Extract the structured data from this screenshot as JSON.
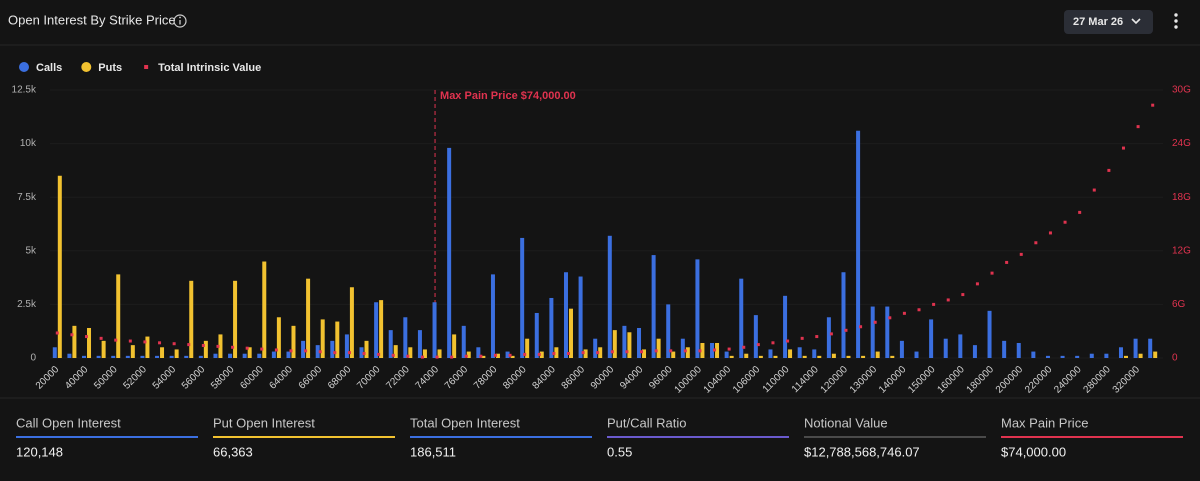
{
  "chart_data": {
    "type": "bar",
    "title": "Open Interest By Strike Price",
    "categories": [
      20000,
      null,
      40000,
      null,
      50000,
      null,
      52000,
      null,
      54000,
      null,
      56000,
      null,
      58000,
      null,
      60000,
      null,
      64000,
      null,
      66000,
      null,
      68000,
      null,
      70000,
      null,
      72000,
      null,
      74000,
      null,
      76000,
      null,
      78000,
      null,
      80000,
      null,
      84000,
      null,
      86000,
      null,
      90000,
      null,
      94000,
      null,
      96000,
      null,
      100000,
      null,
      104000,
      null,
      106000,
      null,
      110000,
      null,
      114000,
      null,
      120000,
      null,
      130000,
      null,
      140000,
      null,
      150000,
      null,
      160000,
      null,
      180000,
      null,
      200000,
      null,
      220000,
      null,
      240000,
      null,
      280000,
      null,
      320000,
      null
    ],
    "series": [
      {
        "name": "Calls",
        "color": "#3b6fe0",
        "values": [
          500,
          200,
          100,
          100,
          100,
          100,
          100,
          100,
          100,
          100,
          100,
          200,
          200,
          200,
          200,
          300,
          300,
          800,
          600,
          800,
          1100,
          500,
          2600,
          1300,
          1900,
          1300,
          2600,
          9800,
          1500,
          500,
          3900,
          300,
          5600,
          2100,
          2800,
          4000,
          3800,
          900,
          5700,
          1500,
          1400,
          4800,
          2500,
          900,
          4600,
          700,
          300,
          3700,
          2000,
          400,
          2900,
          500,
          400,
          1900,
          4000,
          10600,
          2400,
          2400,
          800,
          300,
          1800,
          900,
          1100,
          600,
          2200,
          800,
          700,
          300,
          100,
          100,
          100,
          200,
          200,
          500,
          900,
          900
        ]
      },
      {
        "name": "Puts",
        "color": "#f2c230",
        "values": [
          8500,
          1500,
          1400,
          800,
          3900,
          600,
          1000,
          500,
          400,
          3600,
          800,
          1100,
          3600,
          500,
          4500,
          1900,
          1500,
          3700,
          1800,
          1700,
          3300,
          800,
          2700,
          600,
          500,
          400,
          400,
          1100,
          300,
          100,
          200,
          100,
          900,
          300,
          500,
          2300,
          400,
          500,
          1300,
          1200,
          400,
          900,
          300,
          500,
          700,
          700,
          100,
          200,
          100,
          100,
          400,
          100,
          100,
          200,
          100,
          100,
          300,
          100,
          0,
          0,
          0,
          0,
          0,
          0,
          0,
          0,
          0,
          0,
          0,
          0,
          0,
          0,
          0,
          100,
          200,
          300
        ]
      },
      {
        "name": "Total Intrinsic Value",
        "color": "#e0334f",
        "axis": "y2",
        "values": [
          2.8,
          2.6,
          2.4,
          2.2,
          2.0,
          1.9,
          1.8,
          1.7,
          1.6,
          1.5,
          1.4,
          1.3,
          1.2,
          1.1,
          1.0,
          0.9,
          0.8,
          0.8,
          0.7,
          0.6,
          0.6,
          0.5,
          0.4,
          0.3,
          0.2,
          0.1,
          0.1,
          0.1,
          0.2,
          0.2,
          0.3,
          0.3,
          0.4,
          0.4,
          0.5,
          0.5,
          0.6,
          0.6,
          0.7,
          0.7,
          0.7,
          0.8,
          0.8,
          0.8,
          0.8,
          0.9,
          1.0,
          1.2,
          1.5,
          1.7,
          1.9,
          2.2,
          2.4,
          2.7,
          3.1,
          3.5,
          4.0,
          4.5,
          5.0,
          5.4,
          6.0,
          6.5,
          7.1,
          8.3,
          9.5,
          10.7,
          11.6,
          12.9,
          14.0,
          15.2,
          16.3,
          18.8,
          21.0,
          23.5,
          25.9,
          28.3
        ]
      }
    ],
    "ylim": [
      0,
      12500
    ],
    "yticks": [
      0,
      {
        "value": 2500,
        "label": "2.5k"
      },
      {
        "value": 5000,
        "label": "5k"
      },
      {
        "value": 7500,
        "label": "7.5k"
      },
      {
        "value": 10000,
        "label": "10k"
      },
      {
        "value": 12500,
        "label": "12.5k"
      }
    ],
    "y2lim": [
      0,
      30
    ],
    "y2ticks": [
      0,
      {
        "value": 6,
        "label": "6G"
      },
      {
        "value": 12,
        "label": "12G"
      },
      {
        "value": 18,
        "label": "18G"
      },
      {
        "value": 24,
        "label": "24G"
      },
      {
        "value": 30,
        "label": "30G"
      }
    ],
    "grid": true,
    "legend": "top-left",
    "annotation": {
      "text": "Max Pain Price $74,000.00",
      "x": 74000
    }
  },
  "header": {
    "expiry": "27 Mar 26"
  },
  "stats": [
    {
      "label": "Call Open Interest",
      "value": "120,148",
      "color": "#3b6fe0"
    },
    {
      "label": "Put Open Interest",
      "value": "66,363",
      "color": "#f2c230"
    },
    {
      "label": "Total Open Interest",
      "value": "186,511",
      "color": "#3b6fe0"
    },
    {
      "label": "Put/Call Ratio",
      "value": "0.55",
      "color": "#6a5acd"
    },
    {
      "label": "Notional Value",
      "value": "$12,788,568,746.07",
      "color": "#4a4a4a"
    },
    {
      "label": "Max Pain Price",
      "value": "$74,000.00",
      "color": "#e0334f"
    }
  ]
}
